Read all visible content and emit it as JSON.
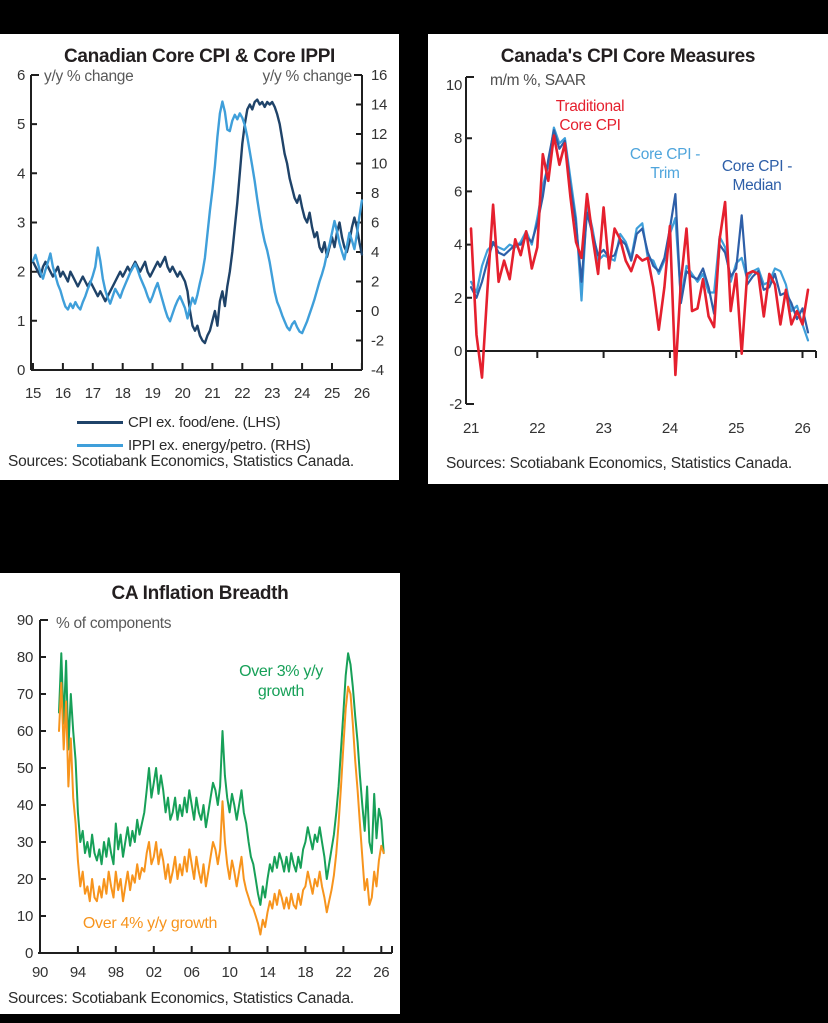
{
  "page": {
    "background": "#000000"
  },
  "chart_data": [
    {
      "id": "c1",
      "type": "line",
      "title": "Canadian Core CPI & Core IPPI",
      "left_axis_label": "y/y % change",
      "right_axis_label": "y/y % change",
      "source": "Sources: Scotiabank Economics, Statistics Canada.",
      "xlim": [
        2015,
        2026
      ],
      "ylim_left": [
        0,
        6
      ],
      "ylim_right": [
        -4,
        16
      ],
      "x_tick_labels": [
        "15",
        "16",
        "17",
        "18",
        "19",
        "20",
        "21",
        "22",
        "23",
        "24",
        "25",
        "26"
      ],
      "x_tick_values": [
        2015,
        2016,
        2017,
        2018,
        2019,
        2020,
        2021,
        2022,
        2023,
        2024,
        2025,
        2026
      ],
      "y_ticks": [
        0,
        1,
        2,
        3,
        4,
        5,
        6
      ],
      "y2_ticks": [
        -4,
        -2,
        0,
        2,
        4,
        6,
        8,
        10,
        12,
        14,
        16
      ],
      "legend": [
        {
          "label": "CPI ex. food/ene. (LHS)",
          "color": "#1F4369"
        },
        {
          "label": "IPPI ex. energy/petro. (RHS)",
          "color": "#3F9FDA"
        }
      ],
      "series": [
        {
          "name": "CPI ex. food/ene. (LHS)",
          "axis": "left",
          "color": "#1F4369",
          "x_start": 2015.0,
          "x_step": 0.08333,
          "values": [
            2.2,
            2.1,
            2.0,
            1.9,
            2.1,
            2.2,
            2.1,
            2.0,
            1.9,
            2.0,
            2.1,
            1.9,
            2.0,
            1.9,
            1.8,
            2.0,
            1.9,
            1.8,
            1.7,
            1.8,
            1.9,
            1.8,
            1.7,
            1.8,
            1.7,
            1.6,
            1.5,
            1.6,
            1.5,
            1.4,
            1.5,
            1.6,
            1.7,
            1.8,
            1.9,
            2.0,
            1.9,
            2.0,
            2.1,
            2.0,
            2.1,
            2.2,
            2.1,
            2.0,
            2.1,
            2.2,
            2.0,
            1.9,
            2.0,
            2.1,
            2.2,
            2.1,
            2.2,
            2.3,
            2.1,
            2.0,
            2.1,
            2.0,
            1.9,
            2.0,
            1.9,
            1.8,
            1.6,
            1.2,
            0.9,
            0.8,
            0.9,
            0.7,
            0.6,
            0.55,
            0.7,
            0.8,
            1.0,
            1.2,
            0.9,
            1.4,
            1.6,
            1.3,
            1.7,
            2.0,
            2.4,
            2.9,
            3.4,
            4.0,
            4.6,
            5.0,
            5.3,
            5.4,
            5.3,
            5.45,
            5.5,
            5.4,
            5.45,
            5.35,
            5.45,
            5.4,
            5.45,
            5.35,
            5.2,
            5.0,
            4.7,
            4.4,
            4.2,
            3.9,
            3.7,
            3.5,
            3.4,
            3.55,
            3.3,
            3.1,
            3.0,
            3.2,
            2.9,
            2.7,
            2.8,
            2.5,
            2.4,
            2.6,
            2.3,
            2.5,
            2.7,
            2.5,
            2.8,
            3.0,
            2.7,
            2.5,
            2.4,
            2.6,
            2.9,
            3.1,
            2.9,
            2.6,
            2.35
          ]
        },
        {
          "name": "IPPI ex. energy/petro. (RHS)",
          "axis": "right",
          "color": "#3F9FDA",
          "x_start": 2015.0,
          "x_step": 0.08333,
          "values": [
            3.4,
            3.8,
            3.2,
            2.6,
            2.2,
            2.8,
            3.3,
            3.9,
            3.0,
            2.4,
            1.8,
            1.4,
            0.8,
            0.3,
            0.1,
            0.5,
            0.2,
            0.6,
            0.3,
            0.1,
            0.6,
            1.0,
            1.5,
            1.9,
            2.4,
            3.0,
            4.3,
            3.4,
            2.2,
            1.4,
            0.9,
            0.5,
            1.0,
            1.5,
            1.2,
            0.9,
            1.4,
            1.8,
            2.2,
            2.6,
            2.9,
            3.2,
            2.8,
            2.3,
            1.9,
            1.5,
            1.0,
            0.6,
            1.0,
            1.5,
            1.9,
            1.3,
            0.7,
            0.1,
            -0.4,
            -0.7,
            -0.2,
            0.3,
            0.7,
            1.0,
            0.6,
            0.2,
            -0.5,
            0.3,
            0.9,
            0.5,
            1.1,
            1.9,
            2.6,
            3.6,
            5.2,
            6.8,
            8.2,
            9.8,
            11.8,
            13.4,
            14.2,
            13.5,
            12.3,
            12.2,
            12.9,
            13.3,
            13.0,
            13.4,
            13.1,
            12.6,
            11.8,
            10.8,
            9.8,
            8.8,
            7.6,
            6.5,
            5.5,
            4.7,
            4.1,
            3.3,
            2.3,
            1.3,
            0.6,
            0.2,
            -0.3,
            -0.7,
            -1.1,
            -1.3,
            -0.9,
            -0.7,
            -1.1,
            -1.4,
            -1.5,
            -1.1,
            -0.7,
            -0.2,
            0.3,
            0.8,
            1.4,
            2.0,
            2.5,
            3.1,
            3.9,
            4.5,
            5.3,
            6.1,
            5.4,
            4.6,
            4.0,
            3.5,
            4.4,
            5.3,
            4.8,
            4.2,
            5.2,
            6.4,
            7.5
          ]
        }
      ]
    },
    {
      "id": "c2",
      "type": "line",
      "title": "Canada's CPI Core Measures",
      "axis_label": "m/m %, SAAR",
      "source": "Sources: Scotiabank Economics, Statistics Canada.",
      "xlim": [
        2021,
        2026.2
      ],
      "ylim": [
        -2,
        10
      ],
      "x_tick_labels": [
        "21",
        "22",
        "23",
        "24",
        "25",
        "26"
      ],
      "x_tick_values": [
        2021,
        2022,
        2023,
        2024,
        2025,
        2026
      ],
      "y_ticks": [
        -2,
        0,
        2,
        4,
        6,
        8,
        10
      ],
      "annotations": [
        {
          "text": "Traditional\nCore CPI",
          "color": "#E5202E"
        },
        {
          "text": "Core CPI -\nTrim",
          "color": "#4FA5DC"
        },
        {
          "text": "Core CPI -\nMedian",
          "color": "#2E5FA8"
        }
      ],
      "series": [
        {
          "name": "Core CPI - Trim",
          "axis": "left",
          "color": "#3F9FDA",
          "x_start": 2021.0,
          "x_step": 0.08333,
          "values": [
            2.6,
            2.2,
            3.2,
            3.8,
            4.0,
            3.9,
            3.8,
            4.0,
            3.9,
            4.1,
            4.5,
            4.0,
            5.0,
            6.2,
            7.0,
            8.4,
            7.8,
            8.0,
            6.5,
            5.0,
            1.9,
            5.5,
            4.6,
            3.4,
            3.6,
            3.5,
            3.4,
            4.4,
            4.1,
            3.5,
            4.6,
            4.8,
            3.5,
            3.4,
            2.9,
            3.4,
            4.4,
            5.0,
            2.0,
            3.2,
            2.9,
            2.6,
            2.9,
            2.2,
            2.2,
            4.3,
            3.9,
            2.6,
            3.3,
            3.5,
            2.7,
            3.0,
            3.1,
            2.5,
            2.6,
            3.1,
            3.0,
            2.5,
            1.5,
            1.7,
            1.0,
            0.4
          ]
        },
        {
          "name": "Core CPI - Median",
          "axis": "left",
          "color": "#2E5FA8",
          "x_start": 2021.0,
          "x_step": 0.08333,
          "values": [
            2.4,
            2.0,
            2.6,
            3.4,
            4.1,
            3.7,
            3.6,
            3.8,
            4.0,
            4.0,
            4.3,
            4.1,
            4.8,
            5.8,
            7.2,
            8.3,
            7.6,
            7.9,
            6.2,
            4.8,
            2.6,
            5.2,
            4.4,
            3.6,
            3.8,
            3.5,
            3.6,
            4.2,
            4.0,
            3.4,
            4.4,
            4.6,
            3.7,
            3.2,
            3.0,
            3.5,
            4.6,
            5.9,
            1.8,
            3.0,
            2.8,
            2.7,
            3.1,
            2.4,
            1.4,
            4.0,
            3.7,
            2.8,
            3.1,
            5.1,
            2.5,
            2.8,
            3.0,
            2.3,
            2.4,
            2.9,
            2.1,
            2.2,
            1.8,
            1.2,
            1.6,
            0.7
          ]
        },
        {
          "name": "Traditional Core CPI",
          "axis": "left",
          "color": "#E5202E",
          "x_start": 2021.0,
          "x_step": 0.08333,
          "values": [
            4.6,
            0.6,
            -1.0,
            2.4,
            5.5,
            2.6,
            3.4,
            2.7,
            4.2,
            3.6,
            4.5,
            3.1,
            3.9,
            7.4,
            6.4,
            8.1,
            7.0,
            7.8,
            5.8,
            4.1,
            3.5,
            5.9,
            4.3,
            2.9,
            5.4,
            3.1,
            4.6,
            4.2,
            3.4,
            3.0,
            3.6,
            3.4,
            3.5,
            2.4,
            0.8,
            2.4,
            4.7,
            -0.9,
            2.6,
            4.6,
            1.5,
            1.6,
            2.7,
            1.3,
            0.9,
            4.2,
            5.6,
            1.5,
            2.9,
            -0.1,
            2.9,
            3.0,
            2.9,
            1.3,
            2.9,
            2.5,
            1.0,
            2.3,
            1.0,
            1.5,
            1.0,
            2.3
          ]
        }
      ]
    },
    {
      "id": "c3",
      "type": "line",
      "title": "CA Inflation Breadth",
      "axis_label": "% of components",
      "source": "Sources: Scotiabank Economics, Statistics Canada.",
      "xlim": [
        1990,
        2027
      ],
      "ylim": [
        0,
        90
      ],
      "x_tick_labels": [
        "90",
        "94",
        "98",
        "02",
        "06",
        "10",
        "14",
        "18",
        "22",
        "26"
      ],
      "x_tick_values": [
        1990,
        1994,
        1998,
        2002,
        2006,
        2010,
        2014,
        2018,
        2022,
        2026
      ],
      "y_ticks": [
        0,
        10,
        20,
        30,
        40,
        50,
        60,
        70,
        80,
        90
      ],
      "annotations": [
        {
          "text": "Over 3% y/y\ngrowth",
          "color": "#17A058"
        },
        {
          "text": "Over 4% y/y growth",
          "color": "#F7941D"
        }
      ],
      "series": [
        {
          "name": "Over 3% y/y growth",
          "axis": "left",
          "color": "#17A058",
          "x_start": 1992.0,
          "x_step": 0.25,
          "values": [
            65,
            81,
            62,
            79,
            55,
            70,
            60,
            52,
            38,
            30,
            33,
            27,
            30,
            26,
            32,
            27,
            25,
            28,
            24,
            30,
            26,
            31,
            27,
            24,
            35,
            28,
            32,
            26,
            30,
            34,
            29,
            33,
            30,
            36,
            32,
            35,
            38,
            44,
            50,
            42,
            46,
            50,
            43,
            48,
            44,
            38,
            42,
            36,
            38,
            42,
            36,
            40,
            37,
            42,
            38,
            44,
            40,
            36,
            42,
            38,
            36,
            40,
            34,
            38,
            42,
            46,
            44,
            40,
            45,
            60,
            48,
            42,
            38,
            43,
            40,
            36,
            40,
            44,
            38,
            35,
            30,
            26,
            24,
            20,
            16,
            13,
            18,
            15,
            20,
            24,
            22,
            26,
            23,
            27,
            25,
            22,
            26,
            22,
            27,
            24,
            22,
            26,
            23,
            28,
            30,
            34,
            31,
            28,
            32,
            30,
            34,
            30,
            26,
            20,
            24,
            28,
            32,
            38,
            45,
            55,
            65,
            75,
            81,
            78,
            72,
            64,
            57,
            48,
            40,
            33,
            45,
            30,
            27,
            43,
            31,
            39,
            36,
            27
          ]
        },
        {
          "name": "Over 4% y/y growth",
          "axis": "left",
          "color": "#F7941D",
          "x_start": 1992.0,
          "x_step": 0.25,
          "values": [
            60,
            73,
            55,
            68,
            45,
            58,
            42,
            35,
            25,
            18,
            22,
            16,
            18,
            14,
            20,
            15,
            14,
            18,
            15,
            20,
            16,
            22,
            18,
            15,
            22,
            17,
            20,
            14,
            18,
            22,
            17,
            21,
            19,
            24,
            20,
            23,
            22,
            27,
            30,
            24,
            26,
            30,
            24,
            28,
            25,
            20,
            24,
            19,
            22,
            26,
            20,
            24,
            21,
            26,
            22,
            28,
            24,
            20,
            26,
            22,
            19,
            24,
            18,
            22,
            26,
            30,
            28,
            24,
            28,
            41,
            30,
            24,
            20,
            25,
            22,
            18,
            22,
            26,
            20,
            17,
            15,
            13,
            12,
            10,
            8,
            5,
            9,
            7,
            11,
            14,
            12,
            16,
            13,
            17,
            15,
            12,
            15,
            12,
            16,
            13,
            12,
            16,
            13,
            17,
            18,
            22,
            19,
            16,
            20,
            18,
            22,
            18,
            15,
            11,
            14,
            17,
            21,
            27,
            35,
            45,
            56,
            66,
            72,
            70,
            62,
            52,
            44,
            35,
            26,
            17,
            20,
            13,
            15,
            22,
            18,
            25,
            29,
            27
          ]
        }
      ]
    }
  ]
}
